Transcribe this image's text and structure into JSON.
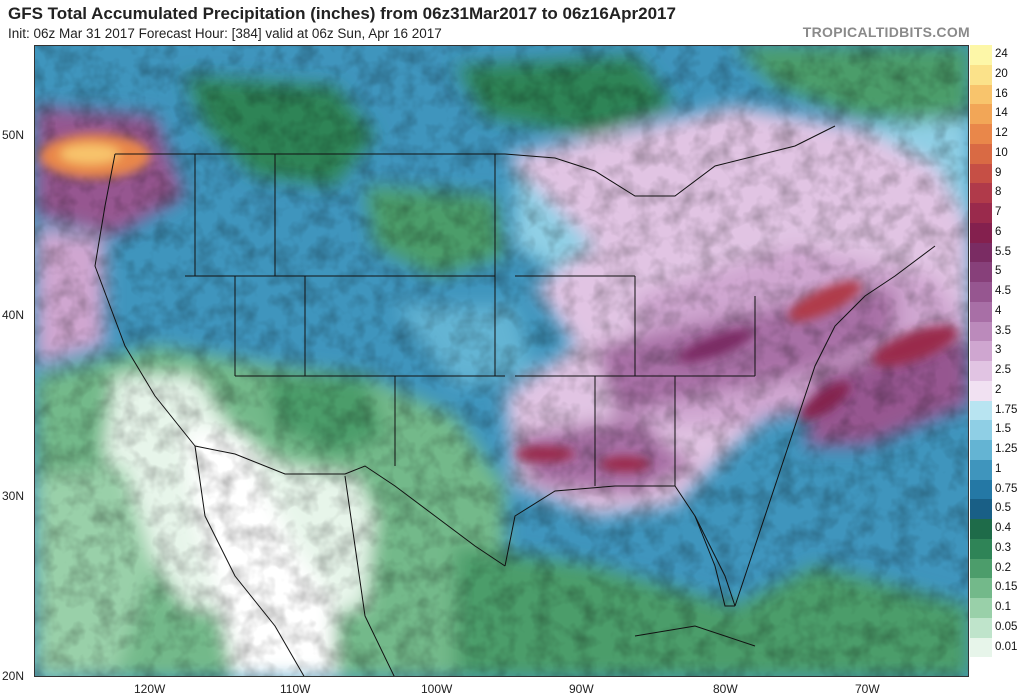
{
  "header": {
    "title": "GFS Total Accumulated Precipitation (inches) from 06z31Mar2017 to 06z16Apr2017",
    "subtitle": "Init: 06z Mar 31 2017   Forecast Hour: [384]   valid at 06z Sun, Apr 16 2017",
    "brand": "TROPICALTIDBITS.COM"
  },
  "axes": {
    "lat_labels": [
      "50N",
      "40N",
      "30N",
      "20N"
    ],
    "lon_labels": [
      "120W",
      "110W",
      "100W",
      "90W",
      "80W",
      "70W"
    ]
  },
  "legend": {
    "items": [
      {
        "label": "24",
        "color": "#fdf7a8"
      },
      {
        "label": "20",
        "color": "#fbe28a"
      },
      {
        "label": "16",
        "color": "#f8c46c"
      },
      {
        "label": "14",
        "color": "#f2a657"
      },
      {
        "label": "12",
        "color": "#e9874a"
      },
      {
        "label": "10",
        "color": "#d96a44"
      },
      {
        "label": "9",
        "color": "#c64f45"
      },
      {
        "label": "8",
        "color": "#b03a4a"
      },
      {
        "label": "7",
        "color": "#9a2a4c"
      },
      {
        "label": "6",
        "color": "#84204e"
      },
      {
        "label": "5.5",
        "color": "#7a2c63"
      },
      {
        "label": "5",
        "color": "#87407a"
      },
      {
        "label": "4.5",
        "color": "#965690"
      },
      {
        "label": "4",
        "color": "#a86fa6"
      },
      {
        "label": "3.5",
        "color": "#bb8abb"
      },
      {
        "label": "3",
        "color": "#cfa6d0"
      },
      {
        "label": "2.5",
        "color": "#e1c4e3"
      },
      {
        "label": "2",
        "color": "#f1e1f2"
      },
      {
        "label": "1.75",
        "color": "#b8e4f1"
      },
      {
        "label": "1.5",
        "color": "#8fcfe5"
      },
      {
        "label": "1.25",
        "color": "#64b4d3"
      },
      {
        "label": "1",
        "color": "#3f95bd"
      },
      {
        "label": "0.75",
        "color": "#2478a5"
      },
      {
        "label": "0.5",
        "color": "#195f86"
      },
      {
        "label": "0.4",
        "color": "#1e6b49"
      },
      {
        "label": "0.3",
        "color": "#2f8457"
      },
      {
        "label": "0.2",
        "color": "#4c9d6b"
      },
      {
        "label": "0.15",
        "color": "#73b98a"
      },
      {
        "label": "0.1",
        "color": "#99d0a9"
      },
      {
        "label": "0.05",
        "color": "#bfe4cb"
      },
      {
        "label": "0.01",
        "color": "#e7f5ea"
      },
      {
        "label": "",
        "color": "#ffffff"
      }
    ]
  }
}
